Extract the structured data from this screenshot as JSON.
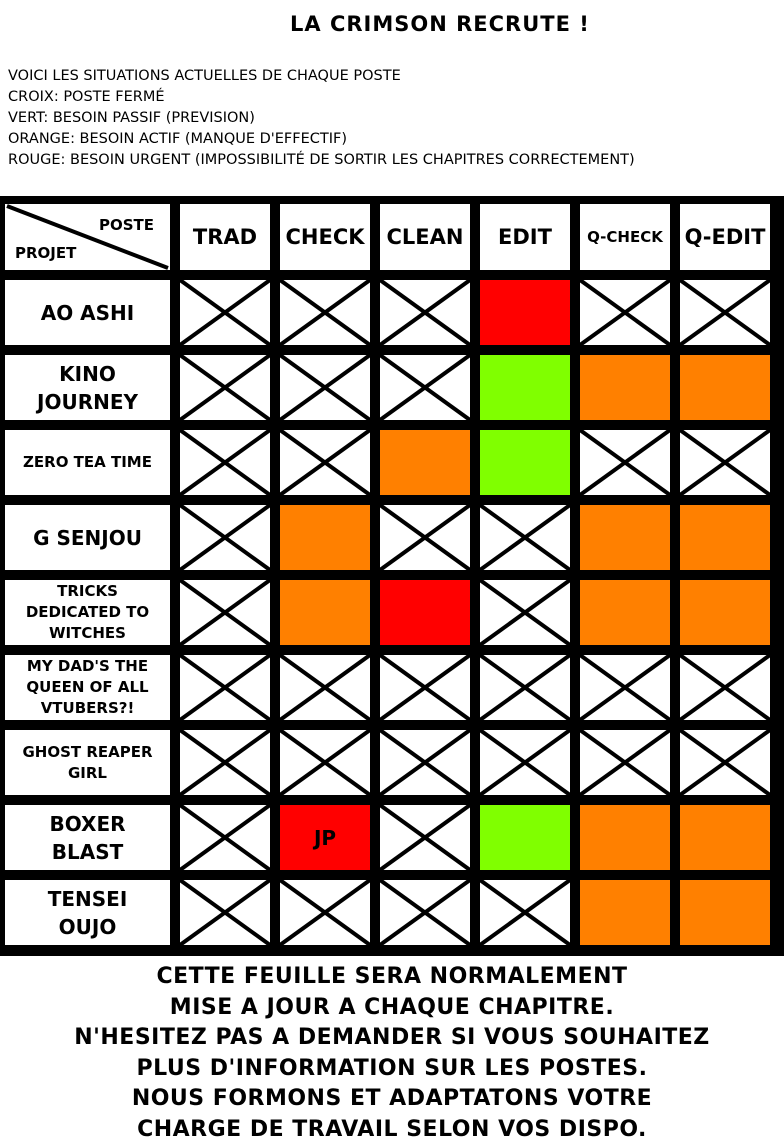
{
  "title": "LA CRIMSON RECRUTE !",
  "legend": [
    "Voici les situations actuelles de chaque poste",
    "Croix: poste fermé",
    "Vert: besoin passif (prevision)",
    "Orange: besoin actif (manque d'effectif)",
    "Rouge: besoin urgent (impossibilité de sortir les chapitres correctement)"
  ],
  "colors": {
    "closed": "#ffffff",
    "green": "#80ff00",
    "orange": "#ff8000",
    "red": "#ff0000"
  },
  "table": {
    "corner": {
      "top": "POSTE",
      "bottom": "PROJET"
    },
    "columns": [
      "TRAD",
      "CHECK",
      "CLEAN",
      "EDIT",
      "Q-CHECK",
      "Q-EDIT"
    ],
    "rows": [
      {
        "project": "AO ASHI",
        "cells": [
          "x",
          "x",
          "x",
          "red",
          "x",
          "x"
        ]
      },
      {
        "project": "KINO JOURNEY",
        "cells": [
          "x",
          "x",
          "x",
          "green",
          "orange",
          "orange"
        ]
      },
      {
        "project": "ZERO TEA TIME",
        "cells": [
          "x",
          "x",
          "orange",
          "green",
          "x",
          "x"
        ]
      },
      {
        "project": "G SENJOU",
        "cells": [
          "x",
          "orange",
          "x",
          "x",
          "orange",
          "orange"
        ]
      },
      {
        "project": "TRICKS DEDICATED TO WITCHES",
        "cells": [
          "x",
          "orange",
          "red",
          "x",
          "orange",
          "orange"
        ]
      },
      {
        "project": "MY DAD'S THE QUEEN OF ALL VTUBERS?!",
        "cells": [
          "x",
          "x",
          "x",
          "x",
          "x",
          "x"
        ]
      },
      {
        "project": "GHOST REAPER GIRL",
        "cells": [
          "x",
          "x",
          "x",
          "x",
          "x",
          "x"
        ]
      },
      {
        "project": "BOXER BLAST",
        "cells": [
          "x",
          "red",
          "x",
          "green",
          "orange",
          "orange"
        ],
        "notes": [
          "",
          "JP",
          "",
          "",
          "",
          ""
        ]
      },
      {
        "project": "TENSEI OUJO",
        "cells": [
          "x",
          "x",
          "x",
          "x",
          "orange",
          "orange"
        ]
      }
    ]
  },
  "footer": [
    "CETTE FEUILLE SERA NORMALEMENT",
    "MISE A JOUR A CHAQUE CHAPITRE.",
    "N'HESITEZ PAS A DEMANDER SI VOUS SOUHAITEZ",
    "PLUS D'INFORMATION SUR LES POSTES.",
    "NOUS FORMONS ET ADAPTATONS VOTRE",
    "CHARGE DE TRAVAIL SELON VOS DISPO."
  ]
}
